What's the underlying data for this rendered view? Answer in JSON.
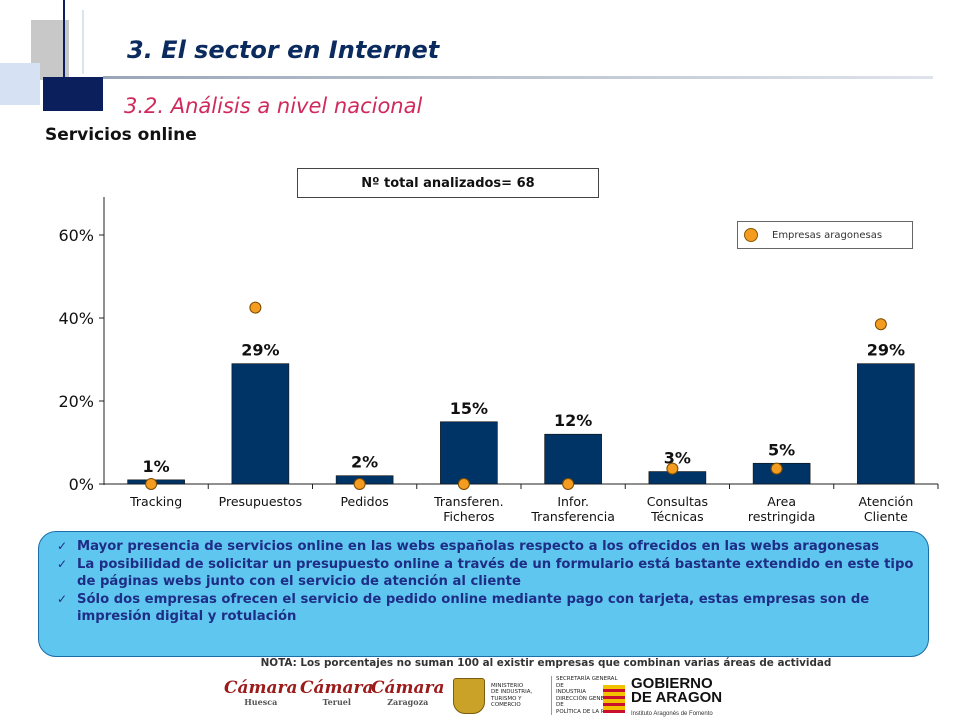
{
  "header": {
    "title": "3. El sector en Internet",
    "subtitle": "3.2. Análisis a nivel nacional",
    "section": "Servicios online"
  },
  "total_box": "Nº total analizados= 68",
  "legend": {
    "marker_label": "Empresas aragonesas"
  },
  "colors": {
    "bar": "#003366",
    "marker": "#f39c1f",
    "title": "#0b2a5e",
    "subtitle": "#d0295c",
    "notes_bg": "#5fc7ef",
    "notes_text": "#1e2d86"
  },
  "chart_data": {
    "type": "bar",
    "categories": [
      [
        "Tracking"
      ],
      [
        "Presupuestos"
      ],
      [
        "Pedidos"
      ],
      [
        "Transferen.",
        "Ficheros"
      ],
      [
        "Infor.",
        "Transferencia"
      ],
      [
        "Consultas",
        "Técnicas"
      ],
      [
        "Area",
        "restringida"
      ],
      [
        "Atención",
        "Cliente"
      ]
    ],
    "series": [
      {
        "values": [
          1,
          29,
          2,
          15,
          12,
          3,
          5,
          29
        ],
        "value_labels": [
          "1%",
          "29%",
          "2%",
          "15%",
          "12%",
          "3%",
          "5%",
          "29%"
        ],
        "mark": "bar"
      },
      {
        "name": "Empresas aragonesas",
        "values": [
          0,
          42.5,
          0,
          0,
          0,
          3.7,
          3.7,
          38.5
        ],
        "mark": "point"
      }
    ],
    "yticks": [
      "0%",
      "20%",
      "40%",
      "60%"
    ],
    "ytick_values": [
      0,
      20,
      40,
      60
    ],
    "ylim": [
      0,
      70
    ],
    "legend_position": "top-right",
    "grid": false
  },
  "notes": [
    "Mayor presencia de servicios online  en las webs españolas respecto a los ofrecidos en las webs aragonesas",
    "La posibilidad de solicitar un presupuesto online a través de un formulario está bastante extendido en este tipo de páginas webs junto con el servicio de atención al cliente",
    "Sólo dos empresas ofrecen el servicio de pedido online mediante pago con tarjeta, estas empresas son de impresión digital y rotulación"
  ],
  "footnote": "NOTA: Los porcentajes no suman 100 al existir empresas que combinan varias áreas de actividad",
  "logos": {
    "camara_huesca": {
      "name": "Cámara",
      "city": "Huesca"
    },
    "camara_teruel": {
      "name": "Cámara",
      "city": "Teruel"
    },
    "camara_zaragoza": {
      "name": "Cámara",
      "city": "Zaragoza"
    },
    "ministerio": {
      "left": [
        "MINISTERIO",
        "DE INDUSTRIA,",
        "TURISMO Y",
        "COMERCIO"
      ],
      "right": [
        "SECRETARÍA GENERAL DE",
        "INDUSTRIA",
        "DIRECCIÓN GENERAL DE",
        "POLÍTICA DE LA PYME"
      ]
    },
    "aragon": {
      "lines": [
        "GOBIERNO",
        "DE ARAGON"
      ],
      "institute": "Instituto Aragonés de Fomento"
    }
  }
}
